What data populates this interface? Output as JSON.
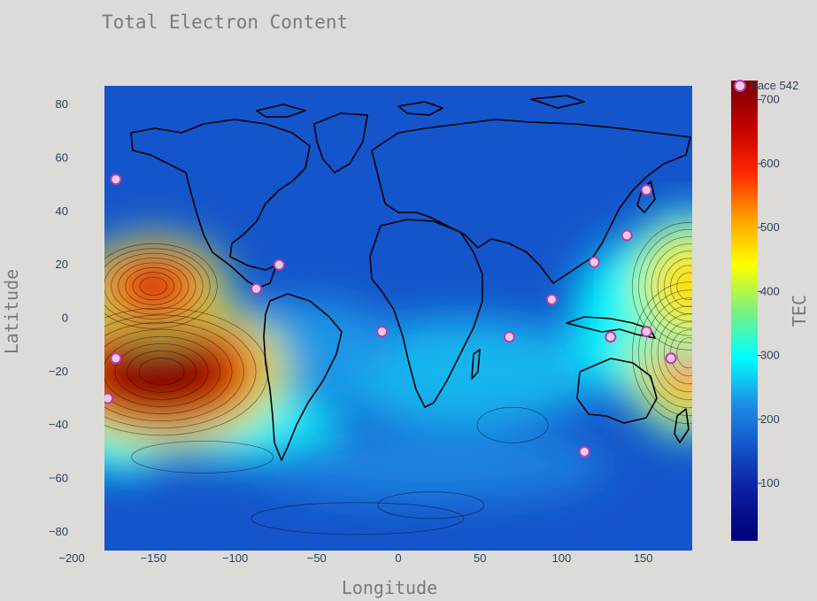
{
  "chart_data": {
    "type": "heatmap",
    "title": "Total Electron Content",
    "xlabel": "Longitude",
    "ylabel": "Latitude",
    "xlim": [
      -180,
      180
    ],
    "ylim": [
      -87,
      87
    ],
    "x_ticks": [
      -200,
      -150,
      -100,
      -50,
      0,
      50,
      100,
      150
    ],
    "y_ticks": [
      -80,
      -60,
      -40,
      -20,
      0,
      20,
      40,
      60,
      80
    ],
    "colorbar": {
      "title": "TEC",
      "range": [
        10,
        730
      ],
      "ticks": [
        100,
        200,
        300,
        400,
        500,
        600,
        700
      ],
      "tick_labels": [
        "100",
        "200",
        "300",
        "400",
        "500",
        "600",
        "700"
      ],
      "colorscale": [
        "#00007a",
        "#0a1a9c",
        "#1450c8",
        "#1e90e6",
        "#00ffff",
        "#7cf07c",
        "#ffff00",
        "#ffa000",
        "#ff2800",
        "#c00000",
        "#7a0000"
      ]
    },
    "background_level": 160,
    "peaks": [
      {
        "lon": -145,
        "lat": -20,
        "value": 720
      },
      {
        "lon": -150,
        "lat": 12,
        "value": 640
      },
      {
        "lon": 178,
        "lat": -13,
        "value": 540
      },
      {
        "lon": 178,
        "lat": 12,
        "value": 470
      }
    ],
    "legend": {
      "entries": [
        "trace 542"
      ],
      "position": "top-right"
    },
    "markers": {
      "name": "trace 542",
      "color": "#f0c8e6",
      "edge_color": "#b040b0",
      "lon": [
        -173,
        -178,
        -173,
        -87,
        -73,
        -10,
        68,
        94,
        120,
        130,
        140,
        152,
        152,
        167,
        114
      ],
      "lat": [
        52,
        -30,
        -15,
        11,
        20,
        -5,
        -7,
        7,
        21,
        -7,
        31,
        48,
        -5,
        -15,
        -50
      ]
    },
    "contours": true
  }
}
